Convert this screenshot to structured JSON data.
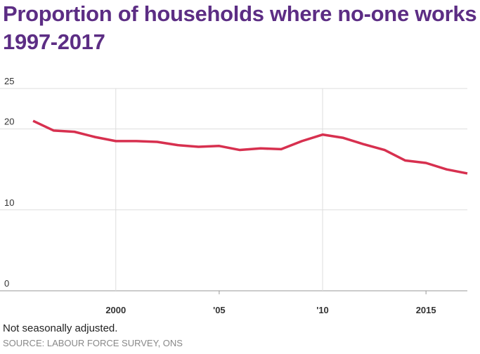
{
  "chart_data": {
    "type": "line",
    "title": "Proportion of households where no-one works 1997-2017",
    "note": "Not seasonally adjusted.",
    "source": "SOURCE: LABOUR FORCE SURVEY, ONS",
    "x": [
      1996,
      1997,
      1998,
      1999,
      2000,
      2001,
      2002,
      2003,
      2004,
      2005,
      2006,
      2007,
      2008,
      2009,
      2010,
      2011,
      2012,
      2013,
      2014,
      2015,
      2016,
      2017
    ],
    "series": [
      {
        "color": "#d7304f",
        "values": [
          21.0,
          19.8,
          19.65,
          19.0,
          18.5,
          18.5,
          18.4,
          18.0,
          17.8,
          17.9,
          17.4,
          17.6,
          17.5,
          18.5,
          19.3,
          18.9,
          18.1,
          17.4,
          16.1,
          15.8,
          15.0,
          14.5
        ]
      }
    ],
    "xlim": [
      1994.4,
      2017.0
    ],
    "xticks": [
      2000,
      {
        "value": 2005,
        "label": "'05"
      },
      {
        "value": 2010,
        "label": "'10"
      },
      2015
    ],
    "ylim": [
      0,
      25
    ],
    "yticks": [
      0,
      10,
      20,
      25
    ],
    "grid": true
  }
}
